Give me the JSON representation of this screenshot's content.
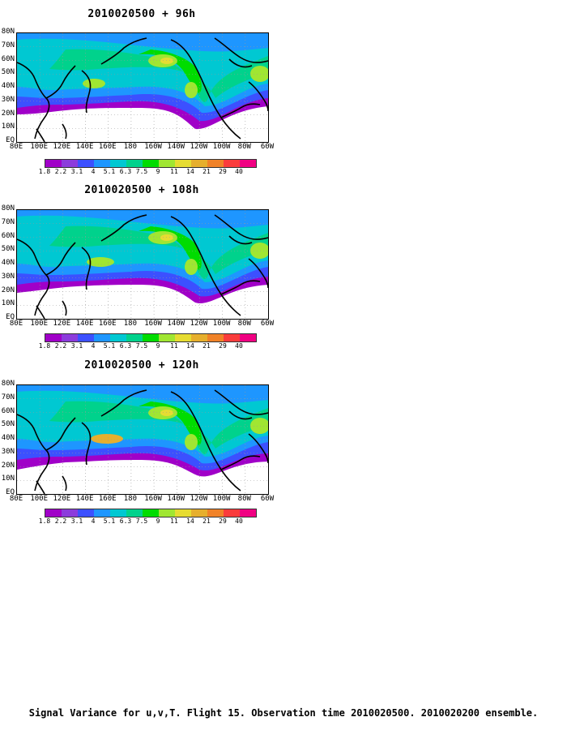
{
  "panels": [
    {
      "title": "2010020500  + 96h"
    },
    {
      "title": "2010020500  + 108h"
    },
    {
      "title": "2010020500  + 120h"
    }
  ],
  "lat_labels": [
    "80N",
    "70N",
    "60N",
    "50N",
    "40N",
    "30N",
    "20N",
    "10N",
    "EQ"
  ],
  "lon_labels": [
    "80E",
    "100E",
    "120E",
    "140E",
    "160E",
    "180",
    "160W",
    "140W",
    "120W",
    "100W",
    "80W",
    "60W"
  ],
  "colorbar": {
    "labels": [
      "1.8",
      "2.2",
      "3.1",
      "4",
      "5.1",
      "6.3",
      "7.5",
      "9",
      "11",
      "14",
      "21",
      "29",
      "40"
    ],
    "colors": [
      "#a000c8",
      "#8c3cdc",
      "#3c50ff",
      "#1e96ff",
      "#00c8d2",
      "#00d28c",
      "#00dc00",
      "#a0e632",
      "#e6dc32",
      "#e6af2d",
      "#f08228",
      "#fa3c3c",
      "#f00082"
    ]
  },
  "caption": "Signal Variance for u,v,T. Flight 15. Observation time 2010020500. 2010020200 ensemble."
}
